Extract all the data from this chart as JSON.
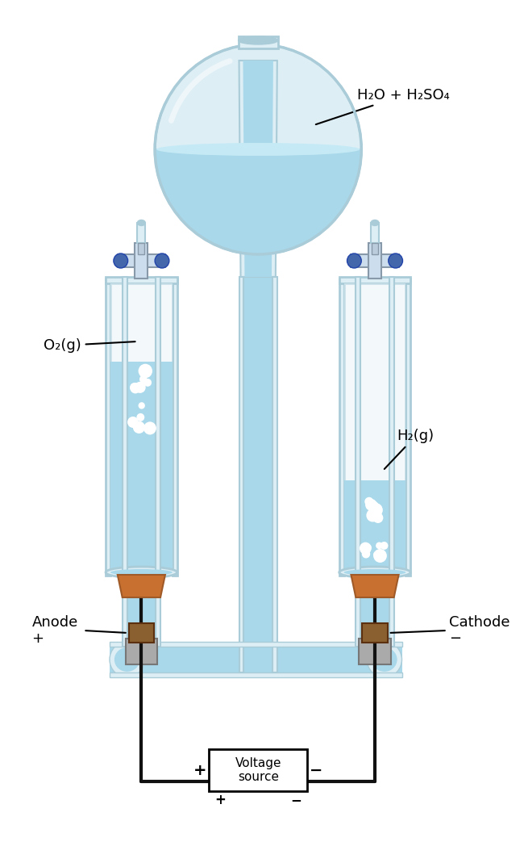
{
  "bg_color": "#ffffff",
  "liquid_color": "#a8d8ea",
  "liquid_color_dark": "#7ec8e3",
  "glass_color": "#d9eef5",
  "glass_edge_color": "#b0cdd8",
  "glass_edge_color2": "#c5dde8",
  "stopper_color": "#c87941",
  "stopper_dark": "#a05a28",
  "electrode_color": "#888888",
  "wire_color": "#111111",
  "voltage_box_color": "#ffffff",
  "valve_color": "#4466aa",
  "bubble_color": "#ffffff",
  "label_fontsize": 13,
  "annotation_fontsize": 13,
  "title": "",
  "flask_label": "H₂O + H₂SO₄",
  "left_gas_label": "O₂(g)",
  "right_gas_label": "H₂(g)",
  "anode_label": "Anode\n+",
  "cathode_label": "Cathode\n−",
  "voltage_label": "Voltage\nsource",
  "plus_label": "+",
  "minus_label": "−"
}
